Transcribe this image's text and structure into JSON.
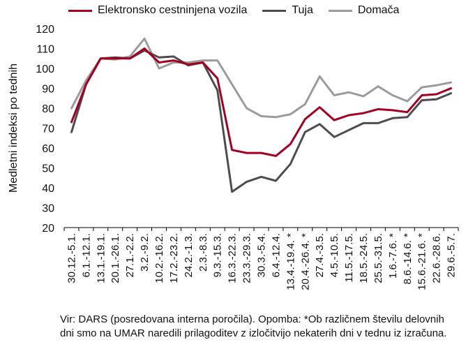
{
  "chart_data": {
    "type": "line",
    "ylabel": "Medletni indeksi po tednih",
    "ylim": [
      20,
      120
    ],
    "yticks": [
      20,
      30,
      40,
      50,
      60,
      70,
      80,
      90,
      100,
      110,
      120
    ],
    "categories": [
      "30.12.-5.1.",
      "6.1.-12.1.",
      "13.1.-19.1.",
      "20.1.-26.1.",
      "27.1.-2.2.",
      "3.2.-9.2.",
      "10.2.-16.2.",
      "17.2.-23.2.",
      "24.2.-1.3.",
      "2.3.-8.3.",
      "9.3.-15.3.",
      "16.3.-22.3.",
      "23.3.-29.3.",
      "30.3.-5.4.",
      "6.4.-12.4.",
      "13.4.-19.4. *",
      "20.4.-26.4. *",
      "27.4.-3.5.",
      "4.5.-10.5.",
      "11.5.-17.5.",
      "18.5.-24.5.",
      "25.5.-31.5.",
      "1.6.-7.6. *",
      "8.6.-14.6. *",
      "15.6.-21.6. *",
      "22.6.-28.6.",
      "29.6.-5.7."
    ],
    "series": [
      {
        "name": "Elektronsko cestninjena vozila",
        "color": "#a50021",
        "values": [
          73,
          92,
          105,
          105,
          105,
          110,
          103,
          104,
          102,
          103,
          95,
          59,
          57.5,
          57.5,
          56,
          62,
          74.5,
          80.5,
          74,
          76.5,
          77.5,
          79.5,
          79,
          78,
          86.5,
          87,
          90
        ]
      },
      {
        "name": "Tuja",
        "color": "#4d4d4d",
        "values": [
          68,
          92,
          105,
          105.5,
          105,
          109,
          105.5,
          106,
          101.5,
          103,
          89,
          38,
          43,
          45.5,
          43.5,
          52,
          68,
          72,
          65.5,
          69,
          72.5,
          72.5,
          75,
          75.5,
          84,
          84.5,
          87.5
        ]
      },
      {
        "name": "Domača",
        "color": "#9b9b9b",
        "values": [
          80,
          94,
          105,
          104.5,
          106,
          115,
          100,
          103,
          103,
          104,
          104,
          92,
          80,
          76,
          75.5,
          77,
          82,
          96,
          86.5,
          88,
          86,
          91,
          86.5,
          83.5,
          90.5,
          91.5,
          93
        ]
      }
    ],
    "legend_position": "top",
    "grid": false
  },
  "note": "Vir: DARS (posredovana interna poročila). Opomba: *Ob različnem številu delovnih dni smo na UMAR naredili prilagoditev z izločitvijo nekaterih dni v tednu iz izračuna."
}
